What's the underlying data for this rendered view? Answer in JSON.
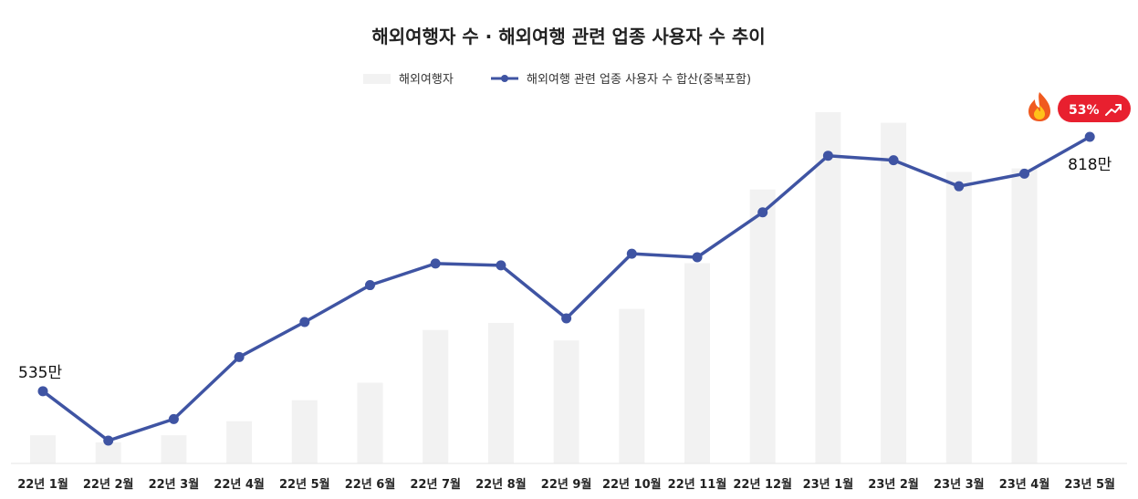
{
  "chart_data": {
    "type": "bar+line",
    "title": "해외여행자 수 · 해외여행 관련 업종 사용자 수 추이",
    "categories": [
      "22년 1월",
      "22년 2월",
      "22년 3월",
      "22년 4월",
      "22년 5월",
      "22년 6월",
      "22년 7월",
      "22년 8월",
      "22년 9월",
      "22년 10월",
      "22년 11월",
      "22년 12월",
      "23년 1월",
      "23년 2월",
      "23년 3월",
      "23년 4월",
      "23년 5월"
    ],
    "series": [
      {
        "name": "해외여행자",
        "kind": "bar",
        "color": "#f2f2f2",
        "values": [
          0.08,
          0.06,
          0.08,
          0.12,
          0.18,
          0.23,
          0.38,
          0.4,
          0.35,
          0.44,
          0.57,
          0.78,
          1.0,
          0.97,
          0.83,
          0.84,
          null
        ]
      },
      {
        "name": "해외여행 관련 업종 사용자 수 합산(중복포함)",
        "kind": "line",
        "color": "#3f54a3",
        "unit": "만",
        "values": [
          535,
          480,
          504,
          573,
          612,
          653,
          677,
          675,
          616,
          688,
          684,
          734,
          797,
          792,
          763,
          777,
          818
        ]
      }
    ],
    "data_labels": [
      {
        "index": 0,
        "text": "535만"
      },
      {
        "index": 16,
        "text": "818만"
      }
    ],
    "badge": {
      "text": "53%",
      "icon": "fire-icon",
      "trend_icon": "trend-up-icon",
      "color": "#e8202f"
    },
    "legend_position": "top-center",
    "grid": false
  }
}
